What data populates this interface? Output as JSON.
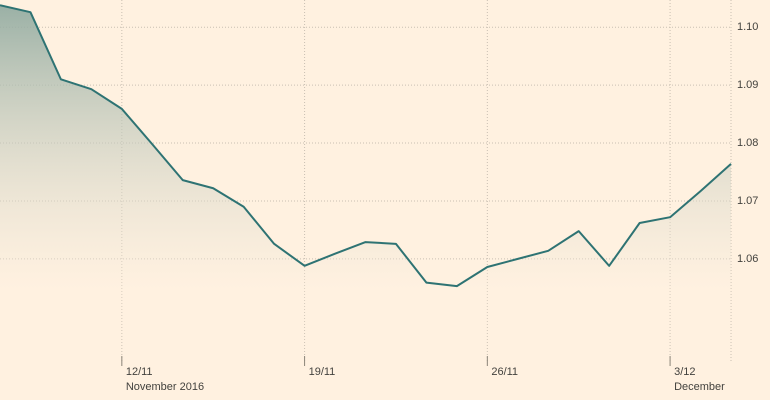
{
  "chart_data": {
    "type": "line",
    "categories": [
      null,
      null,
      null,
      null,
      "12/11",
      null,
      null,
      null,
      null,
      null,
      "19/11",
      null,
      null,
      null,
      null,
      null,
      "26/11",
      null,
      null,
      null,
      null,
      null,
      "3/12",
      null,
      null
    ],
    "periods": [
      null,
      null,
      null,
      null,
      "November 2016",
      null,
      null,
      null,
      null,
      null,
      null,
      null,
      null,
      null,
      null,
      null,
      null,
      null,
      null,
      null,
      null,
      null,
      "December",
      null,
      null
    ],
    "series": [
      {
        "color": "#2e7373",
        "values": [
          1.1038,
          1.1026,
          1.091,
          1.0893,
          1.0859,
          1.0798,
          1.0736,
          1.0722,
          1.069,
          1.0626,
          1.0588,
          1.0609,
          1.0629,
          1.0626,
          1.0559,
          1.0553,
          1.0586,
          1.06,
          1.0614,
          1.0648,
          1.0588,
          1.0662,
          1.0672,
          1.0717,
          1.0764
        ]
      }
    ],
    "ylim": [
      1.0422,
      1.1047
    ],
    "yticks": [
      1.06,
      1.07,
      1.08,
      1.09,
      1.1
    ],
    "ytick_labels": [
      "1.06",
      "1.07",
      "1.08",
      "1.09",
      "1.10"
    ],
    "grid": true,
    "area": true
  }
}
